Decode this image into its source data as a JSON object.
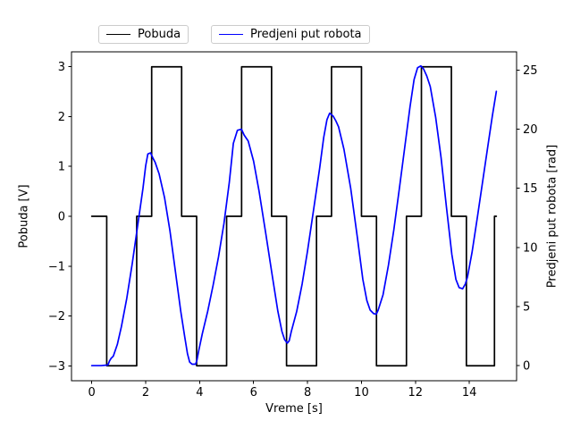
{
  "figure": {
    "background": "#ffffff",
    "spine_color": "#000000",
    "tick_color": "#000000"
  },
  "chart_data": {
    "type": "line",
    "title": "",
    "xlabel": "Vreme [s]",
    "ylabel_left": "Pobuda [V]",
    "ylabel_right": "Predjeni put robota [rad]",
    "grid": false,
    "legend_position": "above-axes",
    "x_range": [
      -0.75,
      15.75
    ],
    "x_ticks": [
      0,
      2,
      4,
      6,
      8,
      10,
      12,
      14
    ],
    "left_range": [
      -3.3,
      3.3
    ],
    "left_ticks": [
      -3,
      -2,
      -1,
      0,
      1,
      2,
      3
    ],
    "right_range": [
      -1.28,
      26.54
    ],
    "right_ticks": [
      0,
      5,
      10,
      15,
      20,
      25
    ],
    "legend": [
      {
        "label": "Pobuda",
        "color": "#000000"
      },
      {
        "label": "Predjeni put robota",
        "color": "#0000ff"
      }
    ],
    "series": [
      {
        "name": "Pobuda",
        "color": "#000000",
        "axis": "left",
        "style": "steps",
        "line_width": 1.7,
        "steps": [
          [
            0,
            0.556,
            0
          ],
          [
            0.556,
            1.667,
            -3
          ],
          [
            1.667,
            2.222,
            0
          ],
          [
            2.222,
            3.333,
            3
          ],
          [
            3.333,
            3.889,
            0
          ],
          [
            3.889,
            5.0,
            -3
          ],
          [
            5.0,
            5.556,
            0
          ],
          [
            5.556,
            6.667,
            3
          ],
          [
            6.667,
            7.222,
            0
          ],
          [
            7.222,
            8.333,
            -3
          ],
          [
            8.333,
            8.889,
            0
          ],
          [
            8.889,
            10.0,
            3
          ],
          [
            10.0,
            10.556,
            0
          ],
          [
            10.556,
            11.667,
            -3
          ],
          [
            11.667,
            12.222,
            0
          ],
          [
            12.222,
            13.333,
            3
          ],
          [
            13.333,
            13.889,
            0
          ],
          [
            13.889,
            14.93,
            -3
          ],
          [
            14.93,
            15.0,
            0
          ]
        ]
      },
      {
        "name": "Predjeni put robota",
        "color": "#0000ff",
        "axis": "right",
        "style": "line",
        "line_width": 1.7,
        "x": [
          0,
          0.35,
          0.6,
          0.66,
          0.72,
          0.8,
          0.95,
          1.1,
          1.3,
          1.5,
          1.7,
          1.9,
          2.0,
          2.08,
          2.18,
          2.28,
          2.35,
          2.5,
          2.7,
          2.9,
          3.1,
          3.3,
          3.45,
          3.55,
          3.63,
          3.72,
          3.85,
          3.9,
          3.97,
          4.1,
          4.3,
          4.5,
          4.7,
          4.9,
          5.1,
          5.25,
          5.4,
          5.55,
          5.65,
          5.8,
          6.0,
          6.2,
          6.45,
          6.7,
          6.9,
          7.05,
          7.15,
          7.25,
          7.32,
          7.4,
          7.6,
          7.8,
          8.0,
          8.2,
          8.45,
          8.6,
          8.72,
          8.82,
          8.95,
          9.05,
          9.15,
          9.35,
          9.6,
          9.85,
          10.05,
          10.2,
          10.32,
          10.45,
          10.55,
          10.62,
          10.8,
          11.0,
          11.2,
          11.4,
          11.6,
          11.8,
          11.95,
          12.08,
          12.2,
          12.3,
          12.42,
          12.55,
          12.75,
          12.95,
          13.15,
          13.35,
          13.5,
          13.62,
          13.75,
          13.85,
          13.93,
          14.1,
          14.3,
          14.5,
          14.7,
          14.85,
          15.0
        ],
        "y": [
          0,
          0,
          0.05,
          0.4,
          0.62,
          0.8,
          1.8,
          3.3,
          5.7,
          8.6,
          11.8,
          15.0,
          16.9,
          17.9,
          18.0,
          17.5,
          17.2,
          16.2,
          14.2,
          11.4,
          8.0,
          4.6,
          2.4,
          1.0,
          0.3,
          0.12,
          0.12,
          0.45,
          1.3,
          2.7,
          4.6,
          6.8,
          9.2,
          12.0,
          15.5,
          18.8,
          19.9,
          20.0,
          19.5,
          19.0,
          17.3,
          14.8,
          11.2,
          7.5,
          4.6,
          2.9,
          2.2,
          1.9,
          2.1,
          2.9,
          4.6,
          6.9,
          9.7,
          12.8,
          16.7,
          19.3,
          20.8,
          21.35,
          21.1,
          20.7,
          20.2,
          18.3,
          15.0,
          10.8,
          7.3,
          5.5,
          4.7,
          4.4,
          4.35,
          4.7,
          6.0,
          8.5,
          11.5,
          14.9,
          18.4,
          21.9,
          24.2,
          25.2,
          25.35,
          25.1,
          24.5,
          23.6,
          21.0,
          17.6,
          13.4,
          9.4,
          7.3,
          6.6,
          6.5,
          6.9,
          7.5,
          9.6,
          12.6,
          15.7,
          18.8,
          21.1,
          23.2
        ]
      }
    ]
  }
}
